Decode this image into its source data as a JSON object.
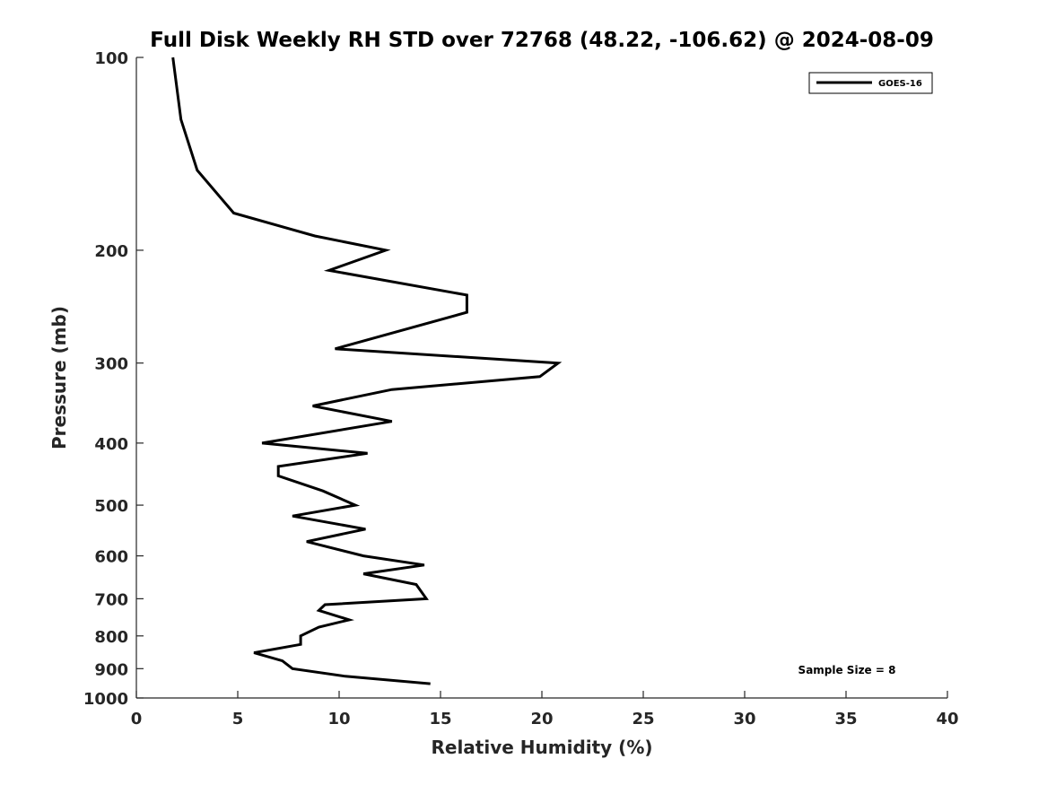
{
  "chart_data": {
    "type": "line",
    "title": "Full Disk Weekly RH STD over 72768 (48.22, -106.62) @ 2024-08-09",
    "xlabel": "Relative Humidity (%)",
    "ylabel": "Pressure (mb)",
    "xlim": [
      0,
      40
    ],
    "ylim": [
      100,
      1000
    ],
    "y_scale": "log",
    "y_reversed": true,
    "grid": false,
    "legend_position": "top-right",
    "x_ticks": [
      "0",
      "5",
      "10",
      "15",
      "20",
      "25",
      "30",
      "35",
      "40"
    ],
    "y_ticks": [
      "100",
      "200",
      "300",
      "400",
      "500",
      "600",
      "700",
      "800",
      "900",
      "1000"
    ],
    "annotation": "Sample Size = 8",
    "series": [
      {
        "name": "GOES-16",
        "color": "#000000",
        "points": [
          {
            "x": 1.8,
            "y": 100
          },
          {
            "x": 2.2,
            "y": 125
          },
          {
            "x": 3.0,
            "y": 150
          },
          {
            "x": 4.8,
            "y": 175
          },
          {
            "x": 8.8,
            "y": 190
          },
          {
            "x": 12.3,
            "y": 200
          },
          {
            "x": 9.5,
            "y": 215
          },
          {
            "x": 16.3,
            "y": 235
          },
          {
            "x": 16.3,
            "y": 250
          },
          {
            "x": 9.8,
            "y": 285
          },
          {
            "x": 20.8,
            "y": 300
          },
          {
            "x": 19.9,
            "y": 315
          },
          {
            "x": 12.6,
            "y": 330
          },
          {
            "x": 8.7,
            "y": 350
          },
          {
            "x": 12.6,
            "y": 370
          },
          {
            "x": 6.2,
            "y": 400
          },
          {
            "x": 11.4,
            "y": 415
          },
          {
            "x": 7.0,
            "y": 435
          },
          {
            "x": 7.0,
            "y": 450
          },
          {
            "x": 9.2,
            "y": 475
          },
          {
            "x": 10.8,
            "y": 500
          },
          {
            "x": 7.7,
            "y": 520
          },
          {
            "x": 11.3,
            "y": 545
          },
          {
            "x": 8.4,
            "y": 570
          },
          {
            "x": 11.2,
            "y": 600
          },
          {
            "x": 14.2,
            "y": 620
          },
          {
            "x": 11.2,
            "y": 640
          },
          {
            "x": 13.8,
            "y": 665
          },
          {
            "x": 14.3,
            "y": 700
          },
          {
            "x": 9.3,
            "y": 715
          },
          {
            "x": 9.0,
            "y": 730
          },
          {
            "x": 10.5,
            "y": 755
          },
          {
            "x": 9.0,
            "y": 775
          },
          {
            "x": 8.1,
            "y": 800
          },
          {
            "x": 8.1,
            "y": 825
          },
          {
            "x": 5.8,
            "y": 850
          },
          {
            "x": 7.2,
            "y": 875
          },
          {
            "x": 7.7,
            "y": 900
          },
          {
            "x": 10.3,
            "y": 925
          },
          {
            "x": 14.5,
            "y": 950
          }
        ]
      }
    ]
  }
}
